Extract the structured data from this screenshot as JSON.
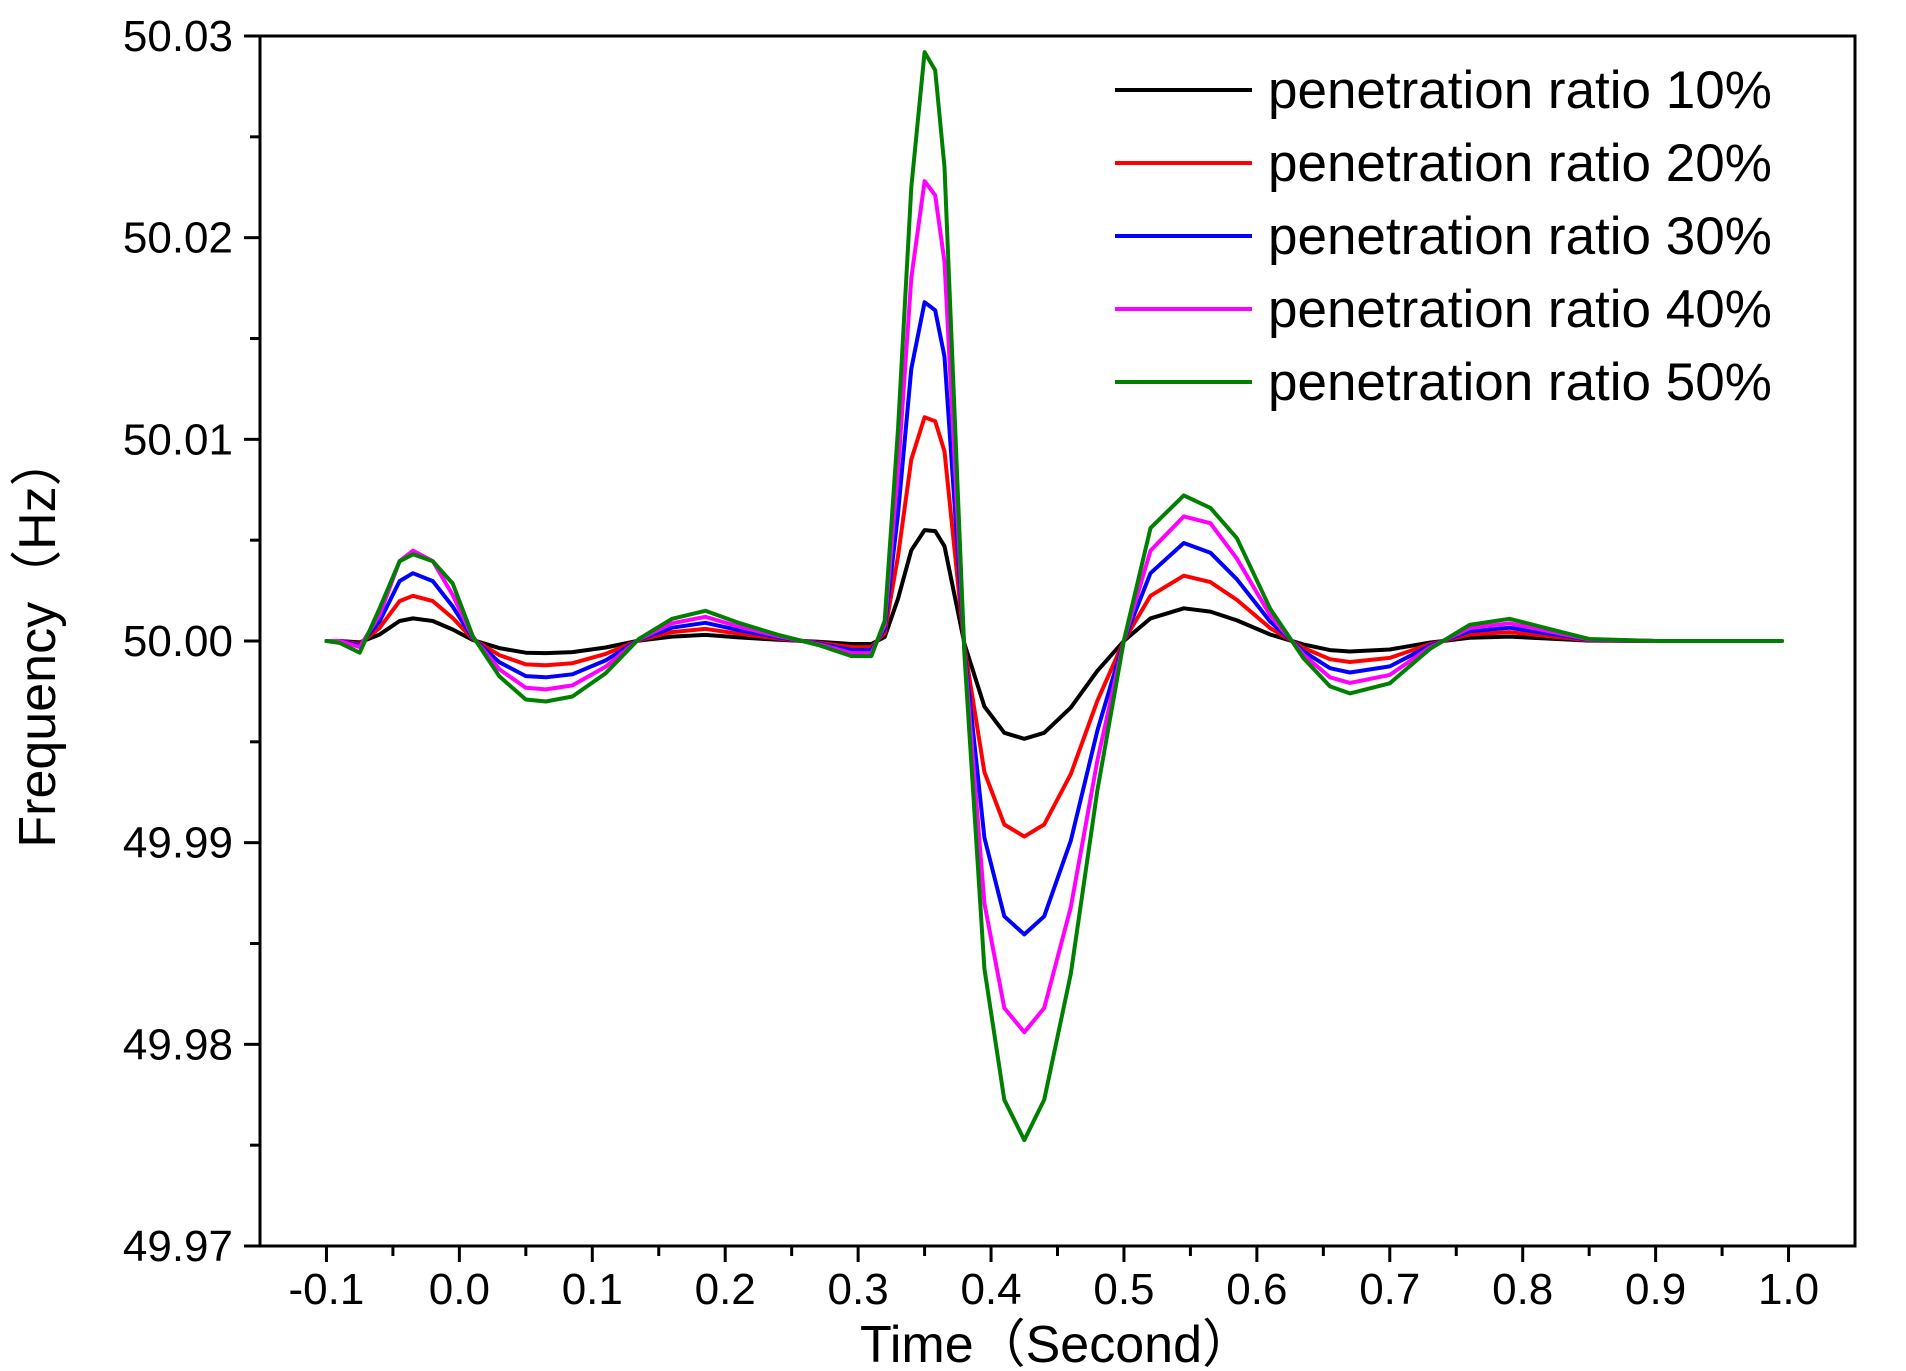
{
  "chart_data": {
    "type": "line",
    "title": "",
    "xlabel": "Time（Second）",
    "ylabel": "Frequency（Hz）",
    "xlim": [
      -0.15,
      1.05
    ],
    "ylim": [
      49.97,
      50.03
    ],
    "x_ticks": [
      -0.1,
      0.0,
      0.1,
      0.2,
      0.3,
      0.4,
      0.5,
      0.6,
      0.7,
      0.8,
      0.9,
      1.0
    ],
    "x_tick_labels": [
      "-0.1",
      "0.0",
      "0.1",
      "0.2",
      "0.3",
      "0.4",
      "0.5",
      "0.6",
      "0.7",
      "0.8",
      "0.9",
      "1.0"
    ],
    "y_ticks": [
      49.97,
      49.98,
      49.99,
      50.0,
      50.01,
      50.02,
      50.03
    ],
    "y_tick_labels": [
      "49.97",
      "49.98",
      "49.99",
      "50.00",
      "50.01",
      "50.02",
      "50.03"
    ],
    "grid": false,
    "legend_position": "top-right",
    "x": [
      -0.1,
      -0.09,
      -0.075,
      -0.06,
      -0.045,
      -0.035,
      -0.02,
      -0.005,
      0.01,
      0.03,
      0.05,
      0.065,
      0.085,
      0.11,
      0.135,
      0.16,
      0.185,
      0.21,
      0.24,
      0.27,
      0.295,
      0.31,
      0.32,
      0.33,
      0.34,
      0.35,
      0.358,
      0.365,
      0.38,
      0.395,
      0.41,
      0.425,
      0.44,
      0.46,
      0.48,
      0.5,
      0.52,
      0.545,
      0.565,
      0.585,
      0.61,
      0.635,
      0.655,
      0.67,
      0.7,
      0.73,
      0.76,
      0.79,
      0.82,
      0.85,
      0.9,
      0.95,
      0.995
    ],
    "series": [
      {
        "name": "penetration ratio 10%",
        "color": "#000000",
        "values": [
          50.0,
          50.0,
          49.99993,
          50.00032,
          50.00099,
          50.00112,
          50.00099,
          50.00057,
          50.00005,
          49.99965,
          49.99942,
          49.9994,
          49.99945,
          49.99968,
          50.00002,
          50.00022,
          50.0003,
          50.00018,
          50.00006,
          49.99996,
          49.99985,
          49.99985,
          50.0002,
          50.0021,
          50.0045,
          50.0055,
          50.00545,
          50.0047,
          49.99985,
          49.99675,
          49.99545,
          49.99515,
          49.99545,
          49.9967,
          49.99852,
          50.00001,
          50.00112,
          50.00162,
          50.00146,
          50.00102,
          50.00032,
          49.99983,
          49.99955,
          49.99948,
          49.99958,
          49.99992,
          50.00016,
          50.00022,
          50.00012,
          50.00002,
          50.0,
          50.0,
          50.0
        ]
      },
      {
        "name": "penetration ratio 20%",
        "color": "#ff0000",
        "values": [
          50.0,
          50.0,
          49.99985,
          50.00065,
          50.00198,
          50.00224,
          50.00198,
          50.00114,
          50.0001,
          49.9993,
          49.99884,
          49.9988,
          49.9989,
          49.99936,
          50.00004,
          50.00044,
          50.0006,
          50.00036,
          50.00012,
          49.99992,
          49.9997,
          49.9997,
          50.0004,
          50.0042,
          50.009,
          50.0111,
          50.0109,
          50.0094,
          49.9997,
          49.9935,
          49.9909,
          49.9903,
          49.9909,
          49.9934,
          49.99704,
          50.00002,
          50.00224,
          50.00324,
          50.00292,
          50.00204,
          50.00064,
          49.99966,
          49.9991,
          49.99896,
          49.99916,
          49.99984,
          50.00032,
          50.00044,
          50.00024,
          50.00004,
          50.0,
          50.0,
          50.0
        ]
      },
      {
        "name": "penetration ratio 30%",
        "color": "#0000ff",
        "values": [
          50.0,
          50.0,
          49.99978,
          50.00097,
          50.00297,
          50.00336,
          50.00297,
          50.00171,
          50.00015,
          49.99895,
          49.99826,
          49.9982,
          49.99835,
          49.99904,
          50.00006,
          50.00066,
          50.0009,
          50.00054,
          50.00018,
          49.99988,
          49.99955,
          49.99955,
          50.0006,
          50.0063,
          50.0135,
          50.0168,
          50.0164,
          50.0141,
          49.99955,
          49.99025,
          49.98635,
          49.98545,
          49.98635,
          49.9901,
          49.99556,
          50.00003,
          50.00336,
          50.00486,
          50.00438,
          50.00306,
          50.00096,
          49.99949,
          49.99865,
          49.99844,
          49.99874,
          49.99976,
          50.00048,
          50.00066,
          50.00036,
          50.00006,
          50.0,
          50.0,
          50.0
        ]
      },
      {
        "name": "penetration ratio 40%",
        "color": "#ff00ff",
        "values": [
          50.0,
          50.0,
          49.9997,
          50.0013,
          50.00396,
          50.00448,
          50.00396,
          50.00228,
          50.0002,
          49.9986,
          49.99768,
          49.9976,
          49.9978,
          49.99872,
          50.00008,
          50.00088,
          50.0012,
          50.00072,
          50.00024,
          49.99984,
          49.9994,
          49.9994,
          50.0008,
          50.0084,
          50.018,
          50.0228,
          50.0221,
          50.0188,
          49.9994,
          49.987,
          49.9818,
          49.9806,
          49.9818,
          49.9868,
          49.99408,
          50.00004,
          50.00448,
          50.00618,
          50.00584,
          50.00408,
          50.00128,
          49.99932,
          49.9982,
          49.99792,
          49.99832,
          49.99968,
          50.00064,
          50.00088,
          50.00048,
          50.00008,
          50.0,
          50.0,
          50.0
        ]
      },
      {
        "name": "penetration ratio 50%",
        "color": "#008000",
        "values": [
          50.0,
          49.9999,
          49.99942,
          50.00162,
          50.00395,
          50.0043,
          50.00395,
          50.00285,
          50.00025,
          49.99825,
          49.9971,
          49.997,
          49.99725,
          49.9984,
          50.0001,
          50.0011,
          50.0015,
          50.0009,
          50.0003,
          49.9998,
          49.99925,
          49.99925,
          50.001,
          50.0105,
          50.0225,
          50.0292,
          50.0283,
          50.0235,
          49.99925,
          49.98375,
          49.97725,
          49.97525,
          49.97725,
          49.9835,
          49.9926,
          50.00005,
          50.0056,
          50.00722,
          50.0066,
          50.0051,
          50.0016,
          49.99915,
          49.99775,
          49.9974,
          49.9979,
          49.9996,
          50.0008,
          50.0011,
          50.0006,
          50.0001,
          50.0,
          50.0,
          50.0
        ]
      }
    ]
  }
}
